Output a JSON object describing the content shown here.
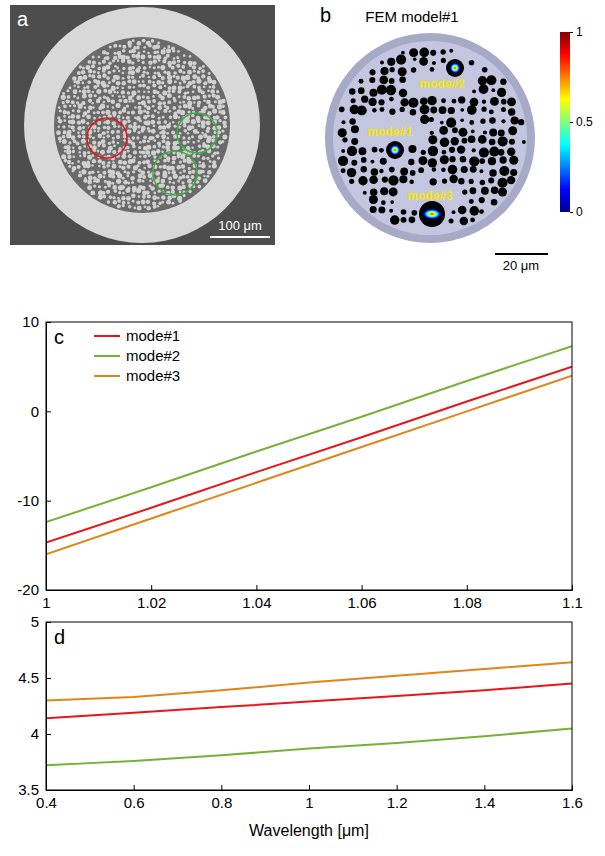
{
  "images": [
    {
      "label": "a",
      "scale_bar": "100 μm"
    },
    {
      "label": "b",
      "title": "FEM model#1",
      "scale_bar": "20 μm",
      "mode_labels": [
        "mode#1",
        "mode#2",
        "mode#3"
      ],
      "colorbar": {
        "lim": [
          0,
          1
        ],
        "ticks": [
          0,
          0.5,
          1
        ]
      }
    }
  ],
  "chart_data": [
    {
      "type": "line",
      "label": "c",
      "x": [
        1,
        1.02,
        1.04,
        1.06,
        1.08,
        1.1
      ],
      "xlim": [
        1,
        1.1
      ],
      "xticks": [
        1,
        1.02,
        1.04,
        1.06,
        1.08,
        1.1
      ],
      "ylim": [
        -20,
        10
      ],
      "yticks": [
        -20,
        -10,
        0,
        10
      ],
      "legend": "top-left",
      "series": [
        {
          "name": "mode#1",
          "color": "#e8151b",
          "values": [
            -14.7,
            -10.8,
            -6.8,
            -2.9,
            1.1,
            5.0
          ]
        },
        {
          "name": "mode#2",
          "color": "#77b13a",
          "values": [
            -12.4,
            -8.5,
            -4.5,
            -0.6,
            3.4,
            7.3
          ]
        },
        {
          "name": "mode#3",
          "color": "#e0851a",
          "values": [
            -16.0,
            -12.0,
            -8.0,
            -4.0,
            0.0,
            4.0
          ]
        }
      ]
    },
    {
      "type": "line",
      "label": "d",
      "xlabel": "Wavelength [μm]",
      "x": [
        0.4,
        0.6,
        0.8,
        1.0,
        1.2,
        1.4,
        1.6
      ],
      "xlim": [
        0.4,
        1.6
      ],
      "xticks": [
        0.4,
        0.6,
        0.8,
        1,
        1.2,
        1.4,
        1.6
      ],
      "ylim": [
        3.5,
        5
      ],
      "yticks": [
        3.5,
        4,
        4.5,
        5
      ],
      "series": [
        {
          "color": "#e8151b",
          "values": [
            4.14,
            4.19,
            4.24,
            4.29,
            4.34,
            4.39,
            4.45
          ]
        },
        {
          "color": "#77b13a",
          "values": [
            3.72,
            3.76,
            3.81,
            3.87,
            3.92,
            3.98,
            4.05
          ]
        },
        {
          "color": "#e0851a",
          "values": [
            4.3,
            4.33,
            4.39,
            4.46,
            4.52,
            4.58,
            4.64
          ]
        }
      ]
    }
  ]
}
